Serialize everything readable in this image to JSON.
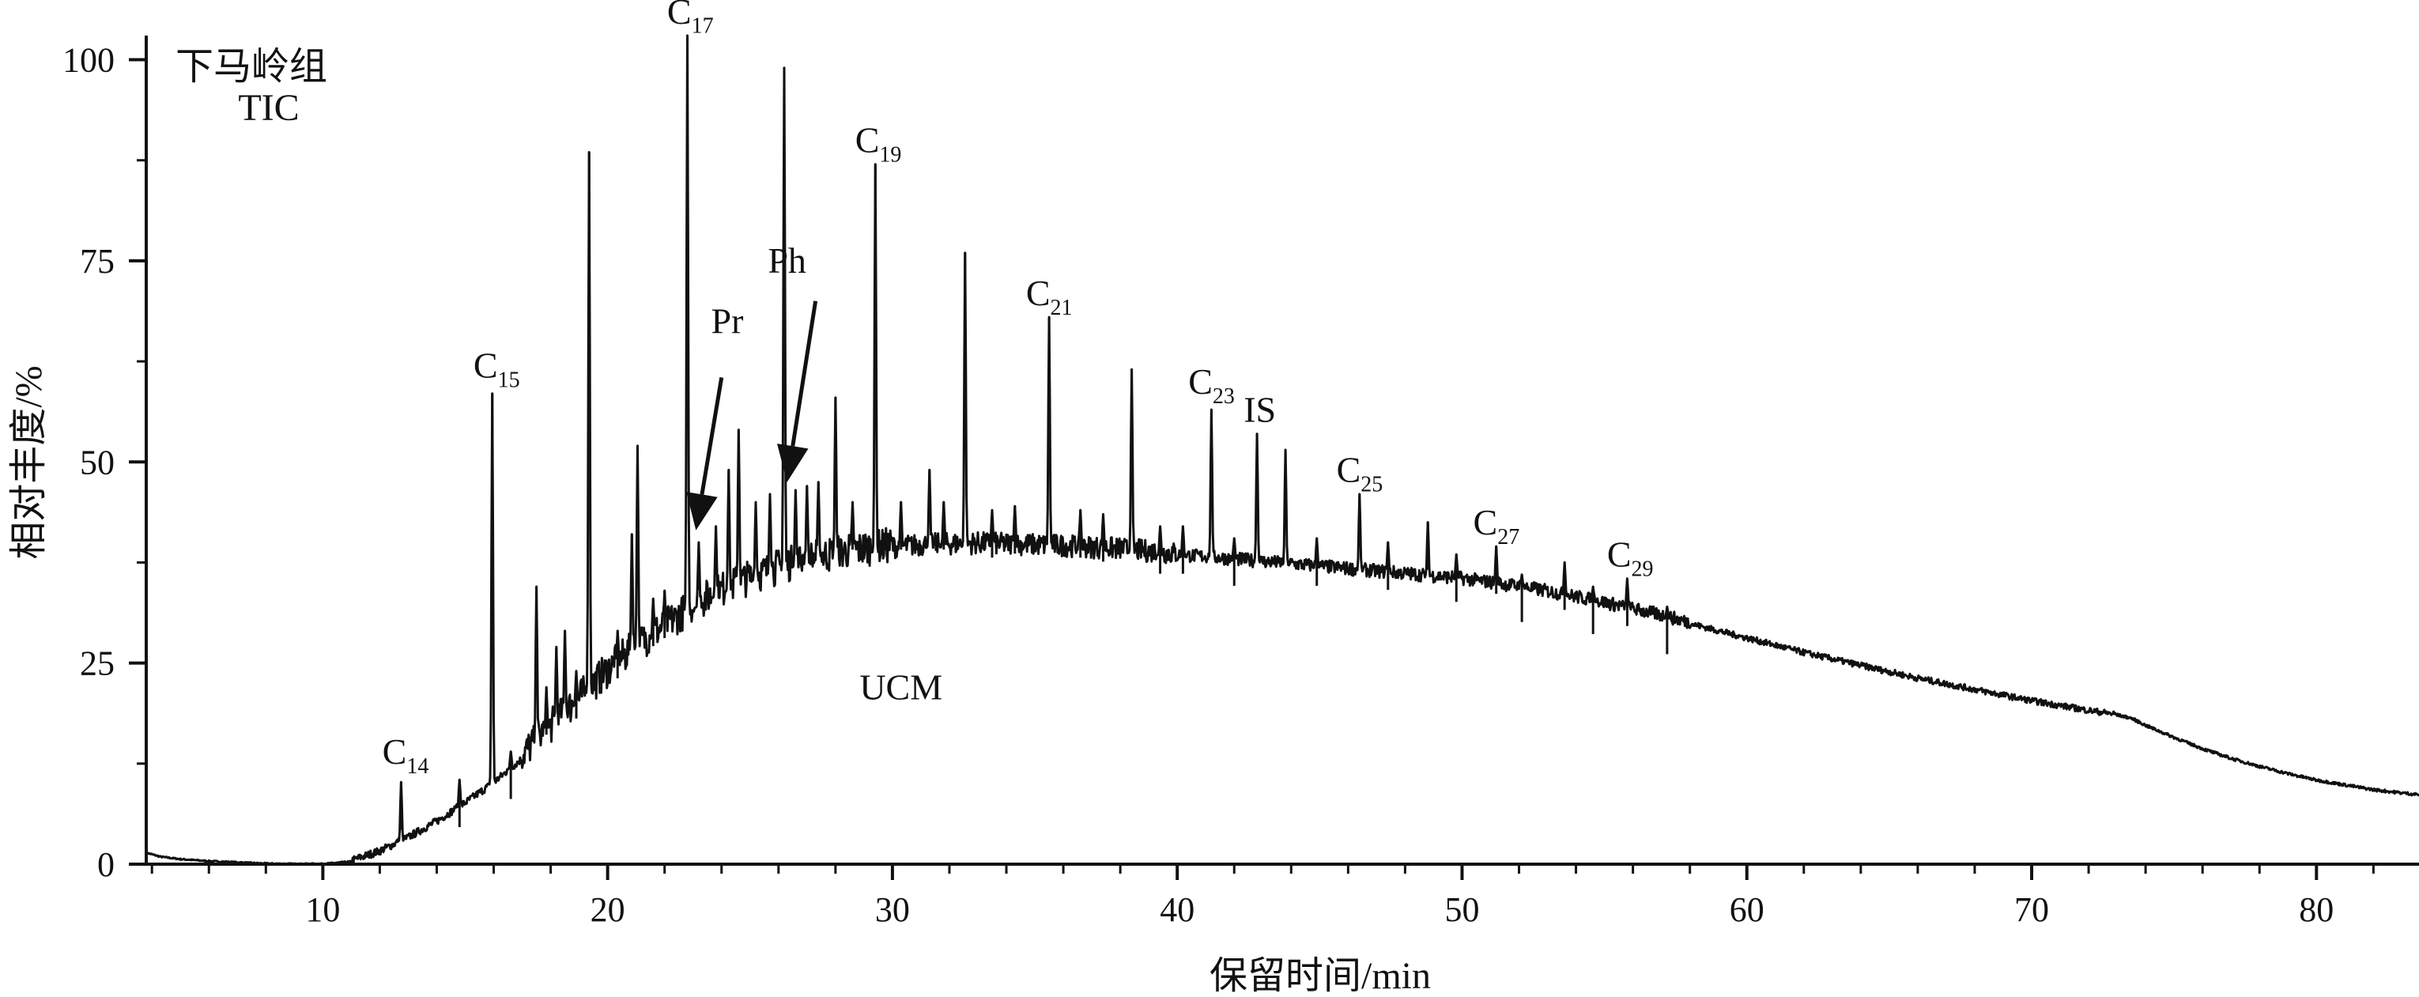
{
  "chart_data": {
    "type": "line",
    "title": "下马岭组",
    "subtitle": "TIC",
    "xlabel": "保留时间/min",
    "ylabel": "相对丰度/%",
    "xlim": [
      3.8,
      83.6
    ],
    "ylim": [
      0,
      103
    ],
    "x_ticks": [
      10,
      20,
      30,
      40,
      50,
      60,
      70,
      80
    ],
    "y_ticks": [
      0,
      25,
      50,
      75,
      100
    ],
    "grid": false,
    "series": [
      {
        "values": [
          [
            3.8,
            1.4
          ],
          [
            4.3,
            0.9
          ],
          [
            5,
            0.6
          ],
          [
            6,
            0.35
          ],
          [
            7,
            0.2
          ],
          [
            8,
            0.05
          ],
          [
            9,
            0.0
          ],
          [
            10,
            0.0
          ],
          [
            11,
            0.3
          ],
          [
            12,
            1.5
          ],
          [
            13,
            3.2
          ],
          [
            14,
            5.2
          ],
          [
            15,
            7.5
          ],
          [
            16,
            10
          ],
          [
            17,
            13
          ],
          [
            18,
            16.5
          ],
          [
            19,
            20
          ],
          [
            20,
            23.5
          ],
          [
            21,
            26.5
          ],
          [
            22,
            29
          ],
          [
            23,
            31.5
          ],
          [
            24,
            33.5
          ],
          [
            25,
            35
          ],
          [
            26,
            36.3
          ],
          [
            27,
            37.3
          ],
          [
            28,
            38
          ],
          [
            29,
            38.6
          ],
          [
            30,
            39
          ],
          [
            31,
            39.3
          ],
          [
            32,
            39.4
          ],
          [
            33,
            39.5
          ],
          [
            34,
            39.4
          ],
          [
            35,
            39.3
          ],
          [
            36,
            39.2
          ],
          [
            37,
            39
          ],
          [
            38,
            38.8
          ],
          [
            39,
            38.5
          ],
          [
            40,
            38.2
          ],
          [
            41,
            38
          ],
          [
            42,
            37.7
          ],
          [
            43,
            37.4
          ],
          [
            44,
            37.1
          ],
          [
            45,
            36.8
          ],
          [
            46,
            36.5
          ],
          [
            47,
            36.2
          ],
          [
            48,
            35.9
          ],
          [
            49,
            35.6
          ],
          [
            50,
            35.3
          ],
          [
            51,
            34.8
          ],
          [
            52,
            34.3
          ],
          [
            53,
            33.7
          ],
          [
            54,
            33
          ],
          [
            55,
            32.3
          ],
          [
            56,
            31.5
          ],
          [
            57,
            30.7
          ],
          [
            58,
            29.8
          ],
          [
            59,
            28.9
          ],
          [
            60,
            28
          ],
          [
            61,
            27.1
          ],
          [
            62,
            26.2
          ],
          [
            63,
            25.4
          ],
          [
            64,
            24.6
          ],
          [
            65,
            23.8
          ],
          [
            66,
            23
          ],
          [
            67,
            22.3
          ],
          [
            68,
            21.6
          ],
          [
            69,
            20.9
          ],
          [
            70,
            20.2
          ],
          [
            71,
            19.6
          ],
          [
            72,
            19
          ],
          [
            73,
            18.5
          ],
          [
            73.5,
            18.1
          ],
          [
            74,
            17.2
          ],
          [
            75,
            15.7
          ],
          [
            76,
            14.3
          ],
          [
            77,
            13.1
          ],
          [
            78,
            12.1
          ],
          [
            79,
            11.2
          ],
          [
            80,
            10.4
          ],
          [
            81,
            9.8
          ],
          [
            82,
            9.2
          ],
          [
            83,
            8.8
          ],
          [
            83.6,
            8.6
          ]
        ],
        "peaks": [
          [
            12.75,
            10.2
          ],
          [
            14.8,
            10.5
          ],
          [
            15.95,
            58.5
          ],
          [
            16.6,
            14
          ],
          [
            17.5,
            34.5
          ],
          [
            17.85,
            22
          ],
          [
            18.2,
            27
          ],
          [
            18.5,
            29
          ],
          [
            18.9,
            24
          ],
          [
            19.35,
            88.5
          ],
          [
            20.35,
            29
          ],
          [
            20.85,
            41
          ],
          [
            21.05,
            52
          ],
          [
            21.6,
            33
          ],
          [
            22.0,
            34
          ],
          [
            22.8,
            103
          ],
          [
            23.2,
            40
          ],
          [
            23.8,
            42
          ],
          [
            24.25,
            49
          ],
          [
            24.6,
            54
          ],
          [
            25.2,
            45
          ],
          [
            25.7,
            46
          ],
          [
            26.2,
            99
          ],
          [
            26.6,
            46.5
          ],
          [
            27.0,
            47
          ],
          [
            27.4,
            47.5
          ],
          [
            28.0,
            58
          ],
          [
            28.6,
            45
          ],
          [
            29.4,
            87
          ],
          [
            30.3,
            45
          ],
          [
            31.3,
            49
          ],
          [
            31.8,
            45
          ],
          [
            32.55,
            76
          ],
          [
            33.5,
            44
          ],
          [
            34.3,
            44.5
          ],
          [
            35.5,
            68
          ],
          [
            36.6,
            44
          ],
          [
            37.4,
            43.5
          ],
          [
            38.4,
            61.5
          ],
          [
            39.4,
            42
          ],
          [
            40.2,
            42
          ],
          [
            41.2,
            56.5
          ],
          [
            42.0,
            40.5
          ],
          [
            42.8,
            53.5
          ],
          [
            43.8,
            51.5
          ],
          [
            44.9,
            40.5
          ],
          [
            46.4,
            46
          ],
          [
            47.4,
            40
          ],
          [
            48.8,
            42.5
          ],
          [
            49.8,
            38.5
          ],
          [
            51.2,
            39.5
          ],
          [
            52.1,
            36
          ],
          [
            53.6,
            37.5
          ],
          [
            54.6,
            34.5
          ],
          [
            55.8,
            35.5
          ],
          [
            57.2,
            32
          ]
        ]
      }
    ],
    "annotations": [
      {
        "text": "C",
        "sub": "14",
        "x": 12.7,
        "y": 12.5
      },
      {
        "text": "C",
        "sub": "15",
        "x": 15.9,
        "y": 60.5
      },
      {
        "text": "C",
        "sub": "17",
        "x": 22.7,
        "y": 104.5
      },
      {
        "text": "C",
        "sub": "19",
        "x": 29.3,
        "y": 88.5
      },
      {
        "text": "C",
        "sub": "21",
        "x": 35.3,
        "y": 69.5
      },
      {
        "text": "C",
        "sub": "23",
        "x": 41.0,
        "y": 58.5
      },
      {
        "text": "IS",
        "sub": "",
        "x": 42.9,
        "y": 55.0
      },
      {
        "text": "C",
        "sub": "25",
        "x": 46.2,
        "y": 47.5
      },
      {
        "text": "C",
        "sub": "27",
        "x": 51.0,
        "y": 41.0
      },
      {
        "text": "C",
        "sub": "29",
        "x": 55.7,
        "y": 37.0
      },
      {
        "text": "Pr",
        "sub": "",
        "x": 24.2,
        "y": 66.0
      },
      {
        "text": "Ph",
        "sub": "",
        "x": 26.3,
        "y": 73.5
      },
      {
        "text": "UCM",
        "sub": "",
        "x": 30.3,
        "y": 20.5
      }
    ],
    "arrows": [
      {
        "label": "Pr",
        "from": [
          24.0,
          60.5
        ],
        "to": [
          23.1,
          41.5
        ]
      },
      {
        "label": "Ph",
        "from": [
          27.3,
          70.0
        ],
        "to": [
          26.3,
          47.5
        ]
      }
    ]
  }
}
